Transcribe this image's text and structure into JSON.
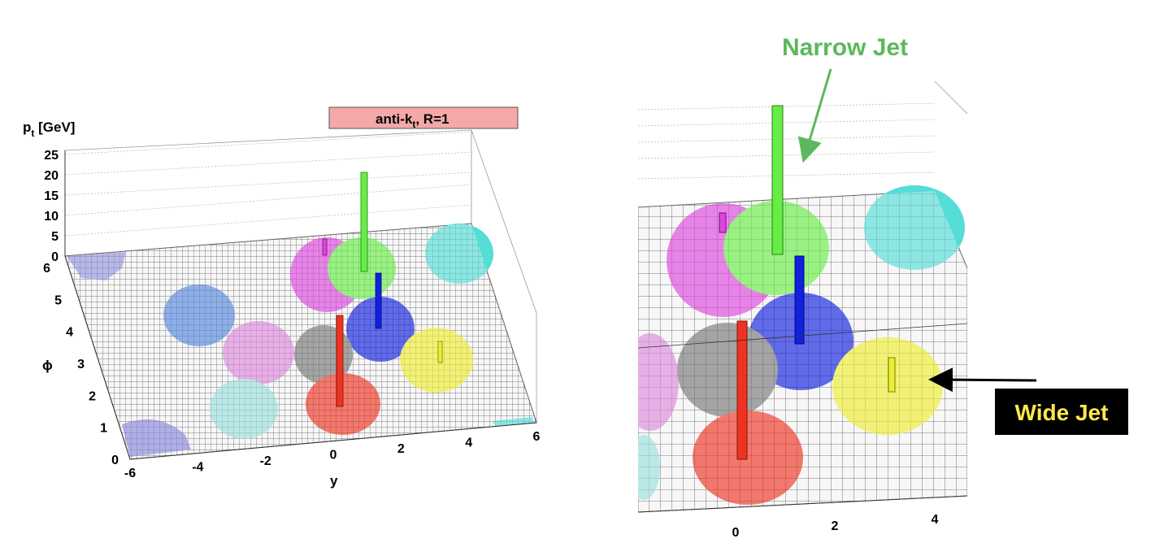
{
  "chart_data": [
    {
      "type": "lego3d",
      "title": "anti-kt, R=1",
      "title_main": "anti-k",
      "title_sub": "t",
      "title_rest": ", R=1",
      "zlabel_main": "p",
      "zlabel_sub": "t",
      "zlabel_rest": " [GeV]",
      "xlabel": "y",
      "ylabel": "ϕ",
      "xlim": [
        -6,
        6
      ],
      "ylim": [
        0,
        6
      ],
      "zlim": [
        0,
        25
      ],
      "x_ticks": [
        "-6",
        "-4",
        "-2",
        "0",
        "2",
        "4",
        "6"
      ],
      "y_ticks": [
        "0",
        "1",
        "2",
        "3",
        "4",
        "5",
        "6"
      ],
      "z_ticks": [
        "0",
        "5",
        "10",
        "15",
        "20",
        "25"
      ],
      "jets": [
        {
          "color": "#66ee44",
          "y": 1.2,
          "phi": 4.9,
          "pt": 20
        },
        {
          "color": "#1020dd",
          "y": 1.9,
          "phi": 3.8,
          "pt": 8
        },
        {
          "color": "#ee3322",
          "y": 0.3,
          "phi": 2.1,
          "pt": 12
        },
        {
          "color": "#dd44dd",
          "y": -0.2,
          "phi": 4.8,
          "pt": 2
        },
        {
          "color": "#777777",
          "y": -0.2,
          "phi": 3.4,
          "pt": 1
        },
        {
          "color": "#eeee33",
          "y": 3.4,
          "phi": 3.1,
          "pt": 3
        },
        {
          "color": "#55ddd8",
          "y": 4.8,
          "phi": 5.5,
          "pt": 1
        },
        {
          "color": "#5588dd",
          "y": -4.2,
          "phi": 4.6,
          "pt": 1
        },
        {
          "color": "#dd88dd",
          "y": -2.8,
          "phi": 3.4,
          "pt": 1
        },
        {
          "color": "#99e0dd",
          "y": -2.6,
          "phi": 1.8,
          "pt": 1
        },
        {
          "color": "#8888dd",
          "y": -5.4,
          "phi": 0.6,
          "pt": 1
        },
        {
          "color": "#8888dd",
          "y": -5.8,
          "phi": 5.9,
          "pt": 0
        }
      ]
    },
    {
      "type": "lego3d",
      "x_ticks": [
        "0",
        "2",
        "4"
      ]
    }
  ],
  "annotations": {
    "narrow_jet": "Narrow Jet",
    "wide_jet": "Wide Jet"
  }
}
